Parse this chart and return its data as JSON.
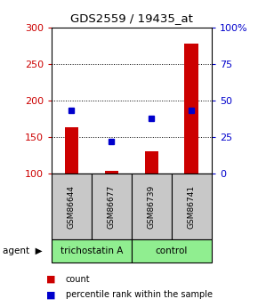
{
  "title": "GDS2559 / 19435_at",
  "categories": [
    "GSM86644",
    "GSM86677",
    "GSM86739",
    "GSM86741"
  ],
  "red_values": [
    163,
    103,
    130,
    278
  ],
  "blue_pct": [
    43,
    22,
    38,
    43
  ],
  "bar_baseline": 100,
  "ylim_left": [
    100,
    300
  ],
  "ylim_right": [
    0,
    100
  ],
  "yticks_left": [
    100,
    150,
    200,
    250,
    300
  ],
  "yticks_right": [
    0,
    25,
    50,
    75,
    100
  ],
  "ytick_labels_right": [
    "0",
    "25",
    "50",
    "75",
    "100%"
  ],
  "red_color": "#cc0000",
  "blue_color": "#0000cc",
  "agent_labels": [
    "trichostatin A",
    "control"
  ],
  "gray_color": "#c8c8c8",
  "green_color": "#90ee90",
  "legend_red": "count",
  "legend_blue": "percentile rank within the sample"
}
